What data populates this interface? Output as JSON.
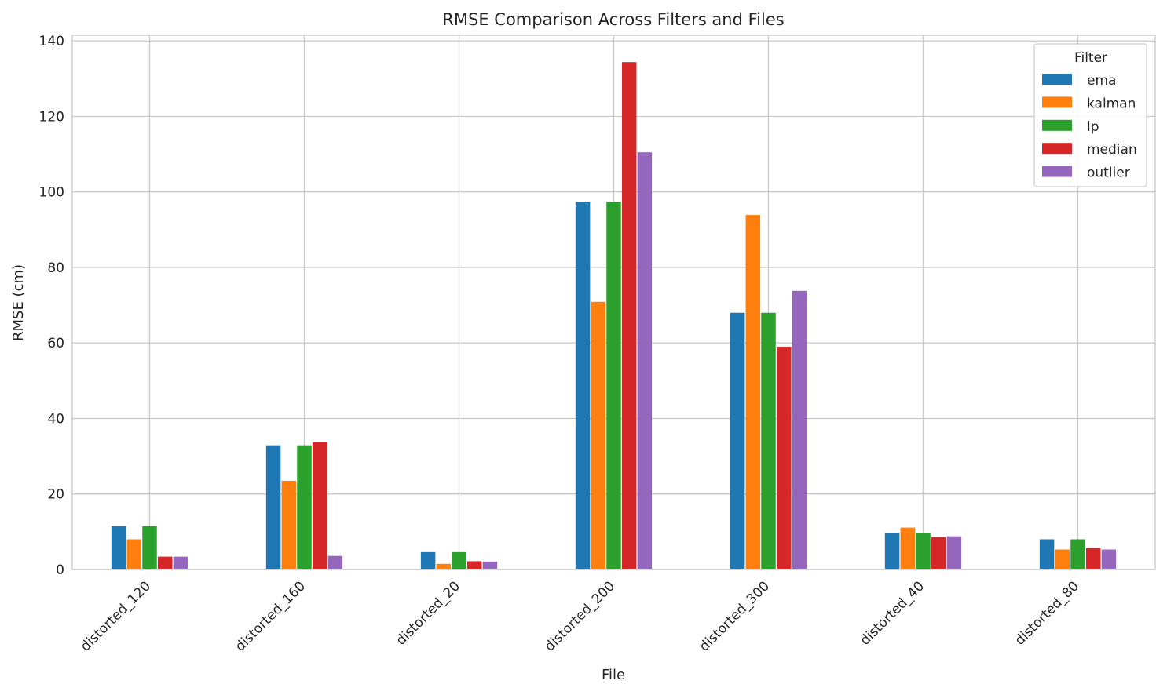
{
  "chart_data": {
    "type": "bar",
    "title": "RMSE Comparison Across Filters and Files",
    "xlabel": "File",
    "ylabel": "RMSE (cm)",
    "ylim": [
      0,
      141.5
    ],
    "yticks": [
      0,
      20,
      40,
      60,
      80,
      100,
      120,
      140
    ],
    "grid": true,
    "legend_title": "Filter",
    "legend_position": "top-right",
    "categories": [
      "distorted_120",
      "distorted_160",
      "distorted_20",
      "distorted_200",
      "distorted_300",
      "distorted_40",
      "distorted_80"
    ],
    "series": [
      {
        "name": "ema",
        "color": "#1f77b4",
        "values": [
          11.5,
          32.9,
          4.6,
          97.4,
          68.0,
          9.6,
          8.0
        ]
      },
      {
        "name": "kalman",
        "color": "#ff7f0e",
        "values": [
          8.0,
          23.5,
          1.5,
          70.9,
          93.9,
          11.1,
          5.3
        ]
      },
      {
        "name": "lp",
        "color": "#2ca02c",
        "values": [
          11.5,
          32.9,
          4.6,
          97.4,
          68.0,
          9.6,
          8.0
        ]
      },
      {
        "name": "median",
        "color": "#d62728",
        "values": [
          3.4,
          33.7,
          2.2,
          134.4,
          59.0,
          8.6,
          5.7
        ]
      },
      {
        "name": "outlier",
        "color": "#9467bd",
        "values": [
          3.4,
          3.6,
          2.1,
          110.5,
          73.8,
          8.8,
          5.3
        ]
      }
    ]
  }
}
